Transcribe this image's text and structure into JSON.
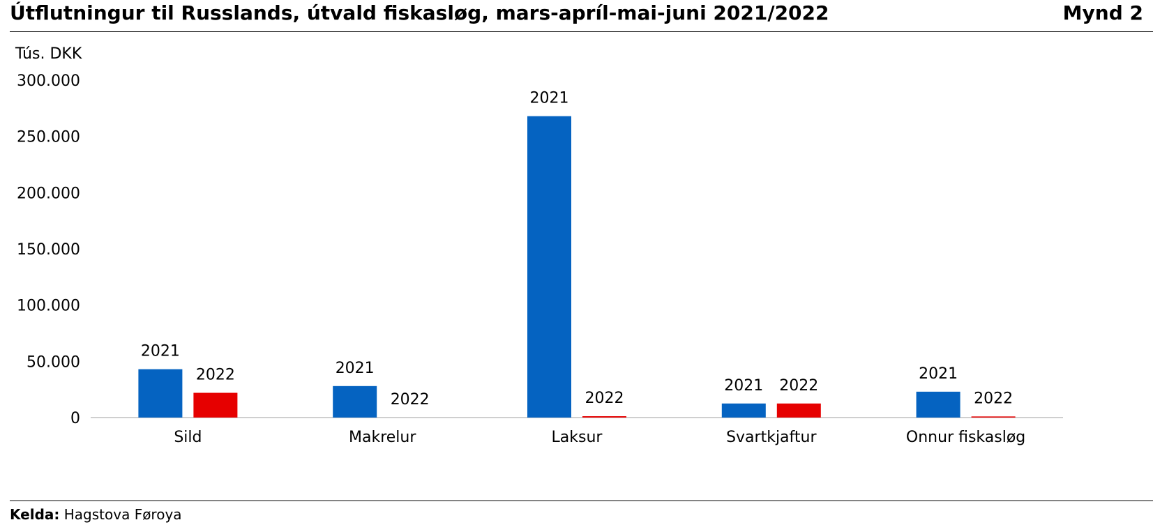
{
  "title": "Útflutningur til Russlands, útvald fiskasløg, mars-apríl-mai-juni 2021/2022",
  "figure_label": "Mynd 2",
  "source": {
    "label": "Kelda:",
    "text": "Hagstova Føroya"
  },
  "colors": {
    "series_2021": "#0563C1",
    "series_2022": "#E60000",
    "axis": "#BFBFBF"
  },
  "chart_data": {
    "type": "bar",
    "title": "Útflutningur til Russlands, útvald fiskasløg, mars-apríl-mai-juni 2021/2022",
    "ylabel": "Tús. DKK",
    "xlabel": "",
    "ylim": [
      0,
      300000
    ],
    "yticks": [
      0,
      50000,
      100000,
      150000,
      200000,
      250000,
      300000
    ],
    "ytick_labels": [
      "0",
      "50.000",
      "100.000",
      "150.000",
      "200.000",
      "250.000",
      "300.000"
    ],
    "grid": false,
    "legend": "none",
    "categories": [
      "Sild",
      "Makrelur",
      "Laksur",
      "Svartkjaftur",
      "Onnur fiskasløg"
    ],
    "series": [
      {
        "name": "2021",
        "values": [
          43000,
          28000,
          268000,
          12500,
          23000
        ]
      },
      {
        "name": "2022",
        "values": [
          22000,
          0,
          1200,
          12500,
          1000
        ]
      }
    ]
  }
}
